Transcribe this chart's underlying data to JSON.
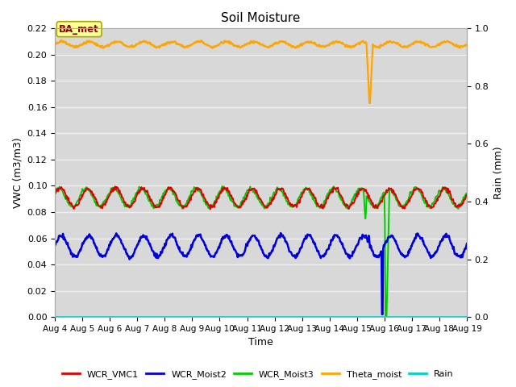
{
  "title": "Soil Moisture",
  "xlabel": "Time",
  "ylabel_left": "VWC (m3/m3)",
  "ylabel_right": "Rain (mm)",
  "ylim_left": [
    0.0,
    0.22
  ],
  "ylim_right": [
    0.0,
    1.0
  ],
  "xtick_labels": [
    "Aug 4",
    "Aug 5",
    "Aug 6",
    "Aug 7",
    "Aug 8",
    "Aug 9",
    "Aug 10",
    "Aug 11",
    "Aug 12",
    "Aug 13",
    "Aug 14",
    "Aug 15",
    "Aug 16",
    "Aug 17",
    "Aug 18",
    "Aug 19"
  ],
  "background_color": "#d8d8d8",
  "grid_color": "#f0f0f0",
  "colors": {
    "WCR_VMC1": "#dd0000",
    "WCR_Moist2": "#0000dd",
    "WCR_Moist3": "#00cc00",
    "Theta_moist": "#ffa500",
    "Rain": "#00cccc"
  },
  "legend_labels": [
    "WCR_VMC1",
    "WCR_Moist2",
    "WCR_Moist3",
    "Theta_moist",
    "Rain"
  ],
  "annotation_text": "BA_met",
  "annotation_color": "#8b0000",
  "annotation_bg": "#ffff99",
  "annotation_edge": "#aaa800"
}
